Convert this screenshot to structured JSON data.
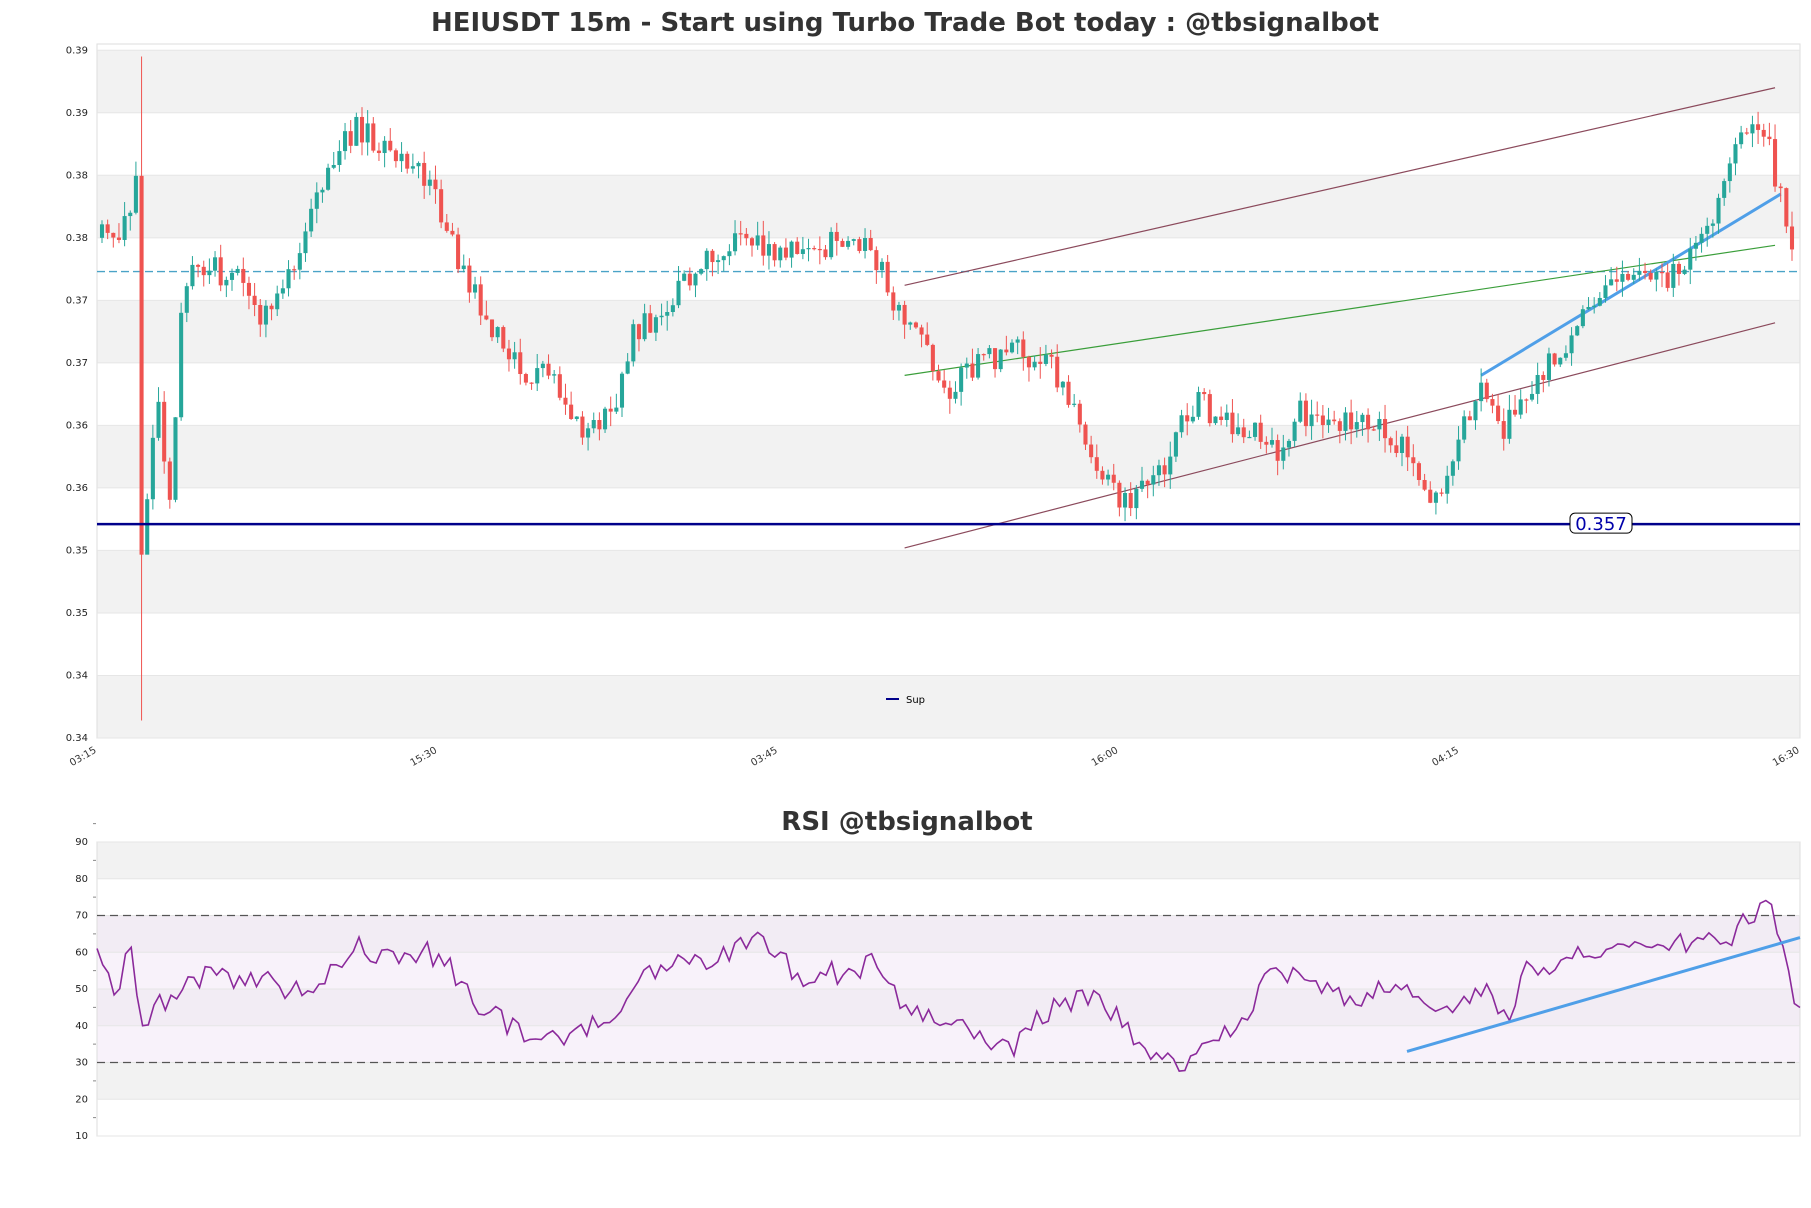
{
  "colors": {
    "up": "#26a69a",
    "down": "#ef5350",
    "band": "#f2f2f2",
    "sup_line": "#00008b",
    "dashed_line": "#4aa3c7",
    "channel": "#8b4a5c",
    "green_line": "#3a9e3a",
    "blue_trend": "#4f9fe8",
    "rsi_line": "#8b2a9b",
    "rsi_levels": "#555555"
  },
  "chart_data": [
    {
      "type": "candlestick",
      "title": "HEIUSDT 15m - Start using Turbo Trade Bot today : @tbsignalbot",
      "ylim": [
        0.34,
        0.3955
      ],
      "y_ticks": [
        {
          "v": 0.34,
          "label": "0.34"
        },
        {
          "v": 0.345,
          "label": "0.34"
        },
        {
          "v": 0.35,
          "label": "0.35"
        },
        {
          "v": 0.355,
          "label": "0.35"
        },
        {
          "v": 0.36,
          "label": "0.36"
        },
        {
          "v": 0.365,
          "label": "0.36"
        },
        {
          "v": 0.37,
          "label": "0.37"
        },
        {
          "v": 0.375,
          "label": "0.37"
        },
        {
          "v": 0.38,
          "label": "0.38"
        },
        {
          "v": 0.385,
          "label": "0.38"
        },
        {
          "v": 0.39,
          "label": "0.39"
        },
        {
          "v": 0.395,
          "label": "0.39"
        }
      ],
      "x_ticks": [
        "03:15",
        "15:30",
        "03:45",
        "16:00",
        "04:15",
        "16:30"
      ],
      "n_bars": 300,
      "support": {
        "value": 0.3571,
        "label": "0.357"
      },
      "dashed_level": 0.3773,
      "legend": [
        {
          "name": "Sup",
          "color": "#00008b"
        }
      ],
      "channel_upper": {
        "x": [
          142,
          296
        ],
        "y": [
          0.3762,
          0.392
        ]
      },
      "channel_lower": {
        "x": [
          142,
          296
        ],
        "y": [
          0.3552,
          0.3732
        ]
      },
      "green_line": {
        "x": [
          142,
          296
        ],
        "y": [
          0.369,
          0.3794
        ]
      },
      "blue_trend": {
        "x": [
          244,
          297
        ],
        "y": [
          0.369,
          0.3835
        ]
      },
      "anchors": [
        [
          0,
          0.381
        ],
        [
          2,
          0.379
        ],
        [
          4,
          0.381
        ],
        [
          5,
          0.382
        ],
        [
          6,
          0.385
        ],
        [
          7,
          0.355
        ],
        [
          8,
          0.36
        ],
        [
          10,
          0.366
        ],
        [
          12,
          0.358
        ],
        [
          14,
          0.375
        ],
        [
          17,
          0.378
        ],
        [
          22,
          0.377
        ],
        [
          26,
          0.376
        ],
        [
          28,
          0.373
        ],
        [
          32,
          0.375
        ],
        [
          36,
          0.381
        ],
        [
          40,
          0.386
        ],
        [
          45,
          0.389
        ],
        [
          50,
          0.387
        ],
        [
          55,
          0.386
        ],
        [
          60,
          0.382
        ],
        [
          65,
          0.376
        ],
        [
          70,
          0.372
        ],
        [
          74,
          0.369
        ],
        [
          80,
          0.369
        ],
        [
          86,
          0.364
        ],
        [
          90,
          0.366
        ],
        [
          94,
          0.372
        ],
        [
          100,
          0.375
        ],
        [
          104,
          0.377
        ],
        [
          108,
          0.379
        ],
        [
          112,
          0.38
        ],
        [
          118,
          0.379
        ],
        [
          126,
          0.379
        ],
        [
          132,
          0.38
        ],
        [
          136,
          0.379
        ],
        [
          140,
          0.375
        ],
        [
          146,
          0.371
        ],
        [
          150,
          0.368
        ],
        [
          156,
          0.37
        ],
        [
          162,
          0.371
        ],
        [
          168,
          0.37
        ],
        [
          172,
          0.366
        ],
        [
          176,
          0.361
        ],
        [
          180,
          0.359
        ],
        [
          186,
          0.36
        ],
        [
          190,
          0.364
        ],
        [
          194,
          0.367
        ],
        [
          198,
          0.365
        ],
        [
          204,
          0.365
        ],
        [
          208,
          0.363
        ],
        [
          212,
          0.366
        ],
        [
          220,
          0.365
        ],
        [
          226,
          0.365
        ],
        [
          232,
          0.362
        ],
        [
          236,
          0.359
        ],
        [
          240,
          0.364
        ],
        [
          244,
          0.369
        ],
        [
          248,
          0.365
        ],
        [
          252,
          0.368
        ],
        [
          258,
          0.371
        ],
        [
          262,
          0.374
        ],
        [
          268,
          0.376
        ],
        [
          272,
          0.377
        ],
        [
          278,
          0.377
        ],
        [
          284,
          0.38
        ],
        [
          288,
          0.387
        ],
        [
          292,
          0.388
        ],
        [
          295,
          0.387
        ],
        [
          297,
          0.383
        ],
        [
          299,
          0.379
        ]
      ]
    },
    {
      "type": "line",
      "title": "RSI @tbsignalbot",
      "ylim": [
        10,
        90
      ],
      "y_ticks": [
        10,
        20,
        30,
        40,
        50,
        60,
        70,
        80,
        90
      ],
      "levels": [
        30,
        70
      ],
      "bands": [
        [
          20,
          30
        ],
        [
          40,
          50
        ],
        [
          60,
          70
        ],
        [
          80,
          90
        ]
      ],
      "rsi_trend": {
        "x": [
          230,
          299
        ],
        "y": [
          33,
          64
        ]
      },
      "anchors": [
        [
          0,
          60
        ],
        [
          3,
          49
        ],
        [
          6,
          61
        ],
        [
          8,
          38
        ],
        [
          10,
          47
        ],
        [
          12,
          44
        ],
        [
          15,
          51
        ],
        [
          20,
          54
        ],
        [
          25,
          53
        ],
        [
          30,
          53
        ],
        [
          33,
          50
        ],
        [
          36,
          49
        ],
        [
          40,
          52
        ],
        [
          45,
          62
        ],
        [
          50,
          59
        ],
        [
          54,
          60
        ],
        [
          58,
          60
        ],
        [
          62,
          56
        ],
        [
          66,
          46
        ],
        [
          70,
          43
        ],
        [
          74,
          38
        ],
        [
          78,
          35
        ],
        [
          82,
          37
        ],
        [
          86,
          40
        ],
        [
          90,
          39
        ],
        [
          96,
          53
        ],
        [
          100,
          55
        ],
        [
          104,
          58
        ],
        [
          108,
          56
        ],
        [
          112,
          62
        ],
        [
          116,
          63
        ],
        [
          120,
          58
        ],
        [
          124,
          53
        ],
        [
          128,
          55
        ],
        [
          132,
          53
        ],
        [
          136,
          57
        ],
        [
          140,
          48
        ],
        [
          144,
          43
        ],
        [
          148,
          40
        ],
        [
          152,
          41
        ],
        [
          156,
          35
        ],
        [
          160,
          33
        ],
        [
          164,
          40
        ],
        [
          168,
          45
        ],
        [
          172,
          47
        ],
        [
          176,
          49
        ],
        [
          180,
          40
        ],
        [
          184,
          33
        ],
        [
          188,
          33
        ],
        [
          190,
          28
        ],
        [
          194,
          36
        ],
        [
          198,
          38
        ],
        [
          202,
          42
        ],
        [
          205,
          53
        ],
        [
          208,
          55
        ],
        [
          212,
          52
        ],
        [
          216,
          49
        ],
        [
          220,
          47
        ],
        [
          224,
          49
        ],
        [
          228,
          50
        ],
        [
          232,
          47
        ],
        [
          236,
          44
        ],
        [
          240,
          46
        ],
        [
          244,
          49
        ],
        [
          248,
          40
        ],
        [
          250,
          55
        ],
        [
          254,
          54
        ],
        [
          258,
          58
        ],
        [
          262,
          59
        ],
        [
          266,
          60
        ],
        [
          270,
          61
        ],
        [
          274,
          63
        ],
        [
          278,
          62
        ],
        [
          282,
          64
        ],
        [
          286,
          63
        ],
        [
          290,
          70
        ],
        [
          294,
          73
        ],
        [
          296,
          63
        ],
        [
          298,
          45
        ],
        [
          299,
          46
        ]
      ]
    }
  ]
}
